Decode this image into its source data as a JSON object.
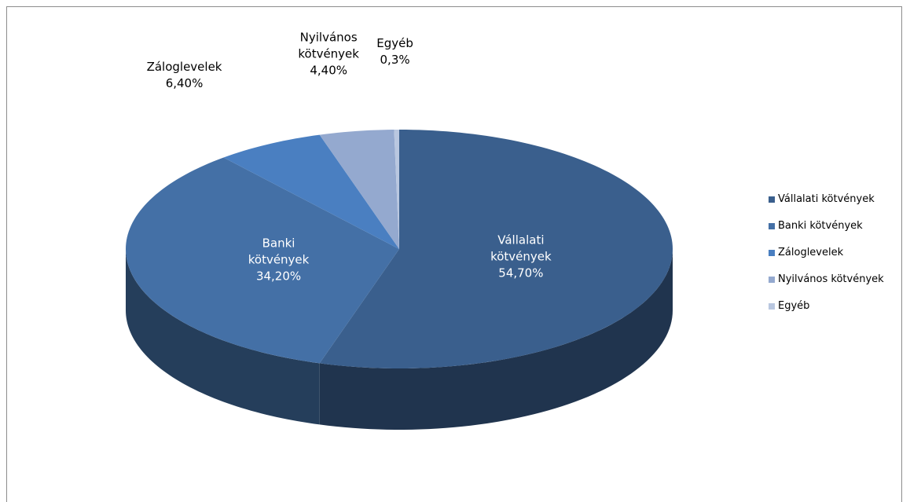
{
  "chart_data": {
    "type": "pie3d",
    "categories": [
      "Vállalati kötvények",
      "Banki kötvények",
      "Záloglevelek",
      "Nyilvános kötvények",
      "Egyéb"
    ],
    "values": [
      54.7,
      34.2,
      6.4,
      4.4,
      0.3
    ],
    "value_labels": [
      "54,70%",
      "34,20%",
      "6,40%",
      "4,40%",
      "0,3%"
    ],
    "colors": [
      "#3a5f8d",
      "#4470a6",
      "#4a7fc1",
      "#94a9cf",
      "#b9c7e0"
    ],
    "legend": "right"
  }
}
